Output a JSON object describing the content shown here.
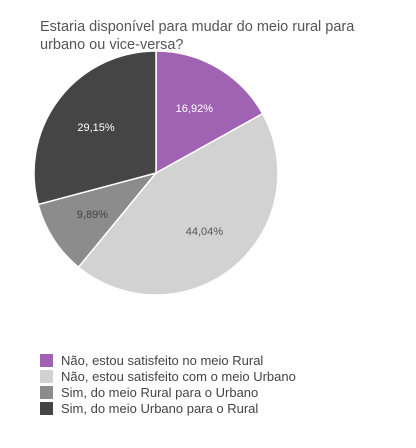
{
  "chart_data": {
    "type": "pie",
    "title": "Estaria disponível para mudar do meio rural para urbano ou vice-versa?",
    "start_angle": "12 o'clock",
    "direction": "clockwise",
    "slices": [
      {
        "label": "Não, estou satisfeito no meio Rural",
        "value": 16.92,
        "display": "16,92%",
        "color": "#a063b3",
        "text_color": "#ffffff"
      },
      {
        "label": "Não, estou satisfeito com o meio Urbano",
        "value": 44.04,
        "display": "44,04%",
        "color": "#d2d2d2",
        "text_color": "#555555"
      },
      {
        "label": "Sim, do meio Rural para o Urbano",
        "value": 9.89,
        "display": "9,89%",
        "color": "#8c8c8c",
        "text_color": "#444444"
      },
      {
        "label": "Sim, do meio Urbano para o Rural",
        "value": 29.15,
        "display": "29,15%",
        "color": "#454545",
        "text_color": "#ffffff"
      }
    ]
  }
}
